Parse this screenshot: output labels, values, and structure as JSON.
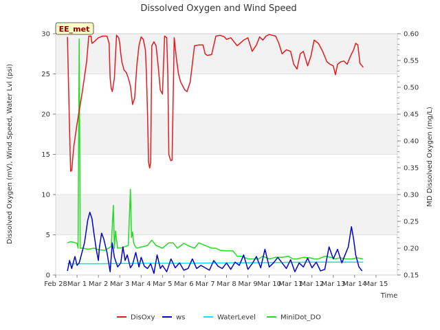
{
  "chart_data": {
    "type": "line",
    "title": "Dissolved Oxygen and Wind Speed",
    "xlabel": "Time",
    "ylabel": "Dissolved Oxygen (mV), Wind Speed, Water Lvl (psi)",
    "y2label": "MD Dissolved Oxygen (mg/L)",
    "badge": "EE_met",
    "xlim": [
      0,
      16
    ],
    "ylim": [
      0,
      30
    ],
    "y2lim": [
      0.15,
      0.6
    ],
    "x_tick_labels": [
      "Feb 28",
      "Mar 1",
      "Mar 2",
      "Mar 3",
      "Mar 4",
      "Mar 5",
      "Mar 6",
      "Mar 7",
      "Mar 8",
      "Mar 9",
      "Mar 10",
      "Mar 11",
      "Mar 12",
      "Mar 13",
      "Mar 14",
      "Mar 15"
    ],
    "y_ticks": [
      0,
      5,
      10,
      15,
      20,
      25,
      30
    ],
    "y2_ticks": [
      0.15,
      0.2,
      0.25,
      0.3,
      0.35,
      0.4,
      0.45,
      0.5,
      0.55,
      0.6
    ],
    "bands": true,
    "legend_position": "bottom",
    "series": [
      {
        "name": "DisOxy",
        "color": "#e31a1c",
        "axis": "left",
        "x": [
          0.55,
          0.6,
          0.65,
          0.7,
          0.75,
          0.8,
          0.85,
          1.0,
          1.25,
          1.45,
          1.55,
          1.65,
          1.7,
          1.8,
          2.0,
          2.2,
          2.4,
          2.5,
          2.55,
          2.6,
          2.65,
          2.75,
          2.85,
          2.95,
          3.0,
          3.05,
          3.1,
          3.15,
          3.2,
          3.3,
          3.4,
          3.5,
          3.6,
          3.7,
          3.8,
          3.9,
          4.0,
          4.1,
          4.2,
          4.25,
          4.3,
          4.35,
          4.4,
          4.45,
          4.5,
          4.6,
          4.7,
          4.8,
          4.9,
          5.0,
          5.1,
          5.2,
          5.25,
          5.3,
          5.35,
          5.4,
          5.45,
          5.55,
          5.65,
          5.75,
          5.85,
          5.95,
          6.05,
          6.15,
          6.3,
          6.5,
          6.7,
          6.9,
          7.0,
          7.1,
          7.3,
          7.5,
          7.7,
          7.9,
          8.0,
          8.2,
          8.5,
          8.8,
          9.0,
          9.2,
          9.4,
          9.55,
          9.7,
          9.85,
          10.0,
          10.3,
          10.45,
          10.6,
          10.8,
          11.0,
          11.15,
          11.3,
          11.45,
          11.6,
          11.8,
          11.95,
          12.1,
          12.3,
          12.5,
          12.7,
          12.85,
          13.0,
          13.1,
          13.2,
          13.35,
          13.5,
          13.65,
          13.8,
          13.95,
          14.05,
          14.15,
          14.25,
          14.35,
          14.4
        ],
        "values": [
          29.6,
          24.0,
          18.0,
          12.9,
          13.0,
          14.5,
          16.0,
          18.8,
          22.8,
          26.5,
          29.7,
          29.7,
          28.8,
          29.0,
          29.5,
          29.7,
          29.7,
          28.8,
          24.5,
          23.2,
          22.8,
          24.5,
          29.8,
          29.5,
          28.8,
          27.5,
          26.5,
          26.0,
          25.5,
          25.2,
          24.5,
          23.5,
          21.2,
          22.0,
          26.0,
          28.5,
          29.6,
          29.3,
          28.0,
          25.0,
          20.0,
          14.0,
          13.3,
          14.0,
          28.5,
          29.0,
          28.5,
          26.0,
          23.0,
          22.5,
          29.7,
          29.5,
          25.0,
          15.0,
          14.5,
          14.2,
          14.3,
          29.5,
          27.0,
          25.0,
          24.0,
          23.5,
          23.0,
          22.8,
          24.0,
          28.5,
          28.6,
          28.6,
          27.5,
          27.3,
          27.4,
          29.7,
          29.8,
          29.6,
          29.3,
          29.5,
          28.5,
          29.2,
          29.5,
          27.8,
          28.6,
          29.6,
          29.2,
          29.7,
          29.9,
          29.7,
          28.8,
          27.5,
          28.0,
          27.8,
          26.2,
          25.6,
          27.5,
          27.8,
          26.0,
          27.2,
          29.2,
          28.8,
          27.8,
          26.5,
          26.2,
          26.0,
          24.9,
          26.2,
          26.5,
          26.6,
          26.2,
          27.2,
          28.0,
          28.8,
          28.6,
          26.3,
          26.0,
          25.8
        ]
      },
      {
        "name": "ws",
        "color": "#0000cc",
        "axis": "left",
        "x": [
          0.55,
          0.65,
          0.75,
          0.9,
          1.0,
          1.1,
          1.2,
          1.35,
          1.5,
          1.6,
          1.7,
          1.8,
          1.9,
          2.0,
          2.05,
          2.15,
          2.25,
          2.4,
          2.5,
          2.55,
          2.65,
          2.75,
          2.9,
          3.05,
          3.15,
          3.25,
          3.35,
          3.5,
          3.6,
          3.75,
          3.9,
          4.0,
          4.15,
          4.3,
          4.45,
          4.6,
          4.75,
          4.9,
          5.0,
          5.2,
          5.4,
          5.6,
          5.8,
          6.0,
          6.2,
          6.4,
          6.6,
          6.8,
          7.0,
          7.2,
          7.4,
          7.6,
          7.8,
          8.0,
          8.2,
          8.4,
          8.6,
          8.8,
          9.0,
          9.2,
          9.4,
          9.6,
          9.8,
          10.0,
          10.2,
          10.4,
          10.6,
          10.8,
          11.0,
          11.2,
          11.4,
          11.6,
          11.8,
          12.0,
          12.2,
          12.4,
          12.6,
          12.8,
          13.0,
          13.2,
          13.4,
          13.55,
          13.7,
          13.85,
          13.95,
          14.05,
          14.2,
          14.35
        ],
        "values": [
          0.5,
          1.8,
          0.8,
          2.3,
          1.2,
          1.5,
          2.5,
          4.0,
          6.8,
          7.8,
          7.0,
          5.0,
          3.2,
          1.8,
          3.5,
          5.2,
          4.5,
          2.8,
          1.2,
          0.4,
          4.0,
          2.2,
          1.0,
          1.5,
          3.5,
          1.8,
          2.5,
          0.9,
          1.3,
          2.8,
          1.0,
          2.2,
          1.1,
          0.8,
          1.4,
          0.2,
          2.5,
          0.8,
          1.2,
          0.4,
          2.0,
          0.9,
          1.5,
          0.6,
          0.8,
          2.0,
          0.8,
          1.2,
          0.9,
          0.6,
          1.8,
          1.1,
          0.8,
          1.5,
          0.7,
          1.6,
          1.2,
          2.5,
          0.7,
          1.4,
          2.3,
          0.9,
          3.2,
          1.0,
          1.5,
          2.2,
          1.5,
          0.8,
          1.9,
          0.4,
          1.5,
          1.0,
          2.1,
          0.9,
          1.6,
          0.5,
          0.7,
          3.5,
          2.0,
          3.2,
          1.5,
          2.5,
          3.5,
          6.0,
          4.5,
          2.5,
          1.0,
          0.5
        ]
      },
      {
        "name": "WaterLevel",
        "color": "#00e5ff",
        "axis": "left",
        "x": [
          0.55,
          2.0,
          4.0,
          6.0,
          8.0,
          10.0,
          12.0,
          14.4
        ],
        "values": [
          1.4,
          1.4,
          1.45,
          1.45,
          1.5,
          1.55,
          1.6,
          1.6
        ]
      },
      {
        "name": "MiniDot_DO",
        "color": "#22dd22",
        "axis": "right",
        "x": [
          0.55,
          0.7,
          0.85,
          1.0,
          1.05,
          1.1,
          1.15,
          1.2,
          1.3,
          1.5,
          1.8,
          2.0,
          2.3,
          2.6,
          2.7,
          2.75,
          2.8,
          2.9,
          3.1,
          3.4,
          3.5,
          3.55,
          3.6,
          3.65,
          3.7,
          3.8,
          4.0,
          4.3,
          4.5,
          4.7,
          5.0,
          5.3,
          5.5,
          5.7,
          6.0,
          6.3,
          6.5,
          6.7,
          7.0,
          7.3,
          7.5,
          7.7,
          8.0,
          8.3,
          8.5,
          8.7,
          9.0,
          9.3,
          9.5,
          9.7,
          10.0,
          10.3,
          10.6,
          10.9,
          11.1,
          11.3,
          11.6,
          11.9,
          12.1,
          12.3,
          12.6,
          12.9,
          13.1,
          13.3,
          13.6,
          13.9,
          14.1,
          14.4
        ],
        "values": [
          0.21,
          0.212,
          0.211,
          0.209,
          0.2,
          0.59,
          0.2,
          0.2,
          0.2,
          0.198,
          0.2,
          0.197,
          0.196,
          0.203,
          0.28,
          0.2,
          0.232,
          0.2,
          0.201,
          0.205,
          0.31,
          0.22,
          0.23,
          0.21,
          0.205,
          0.2,
          0.202,
          0.205,
          0.215,
          0.205,
          0.2,
          0.21,
          0.21,
          0.2,
          0.209,
          0.203,
          0.2,
          0.21,
          0.205,
          0.2,
          0.2,
          0.196,
          0.195,
          0.195,
          0.185,
          0.185,
          0.18,
          0.18,
          0.18,
          0.185,
          0.18,
          0.183,
          0.183,
          0.185,
          0.18,
          0.18,
          0.183,
          0.182,
          0.18,
          0.18,
          0.185,
          0.183,
          0.18,
          0.182,
          0.18,
          0.18,
          0.182,
          0.18
        ]
      }
    ]
  }
}
